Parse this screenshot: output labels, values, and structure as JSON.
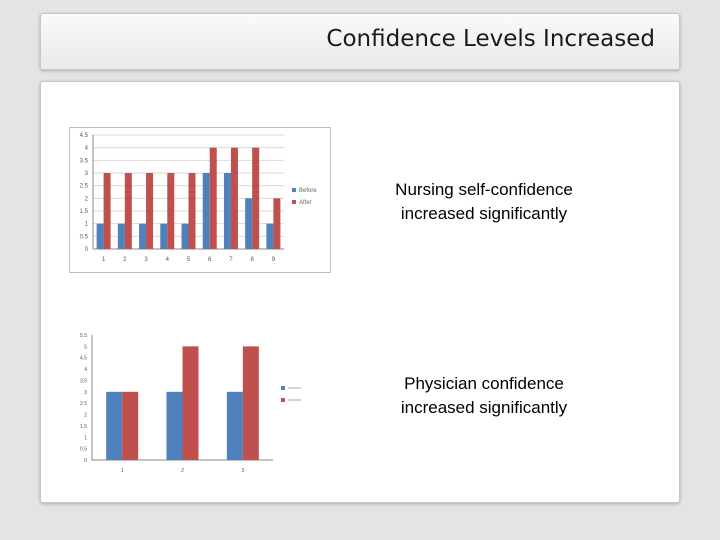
{
  "slide": {
    "title": "Confidence Levels Increased"
  },
  "captions": [
    {
      "line1": "Nursing self-confidence",
      "line2": "increased significantly"
    },
    {
      "line1": "Physician confidence",
      "line2": "increased significantly"
    }
  ],
  "colors": {
    "before": "#4f81bd",
    "after": "#c0504d",
    "axis": "#888888"
  },
  "chart_data": [
    {
      "type": "bar",
      "categories": [
        "1",
        "2",
        "3",
        "4",
        "5",
        "6",
        "7",
        "8",
        "9"
      ],
      "series": [
        {
          "name": "Before",
          "values": [
            1,
            1,
            1,
            1,
            1,
            3,
            3,
            2,
            1
          ]
        },
        {
          "name": "After",
          "values": [
            3,
            3,
            3,
            3,
            3,
            4,
            4,
            4,
            2
          ]
        }
      ],
      "ylim": [
        0,
        4.5
      ],
      "yticks": [
        "0",
        "0.5",
        "1",
        "1.5",
        "2",
        "2.5",
        "3",
        "3.5",
        "4",
        "4.5"
      ],
      "grid": true,
      "legend": "right"
    },
    {
      "type": "bar",
      "categories": [
        "1",
        "2",
        "3"
      ],
      "series": [
        {
          "values": [
            3,
            3,
            3
          ]
        },
        {
          "values": [
            3,
            5,
            5
          ]
        }
      ],
      "ylim": [
        0,
        5.5
      ],
      "yticks": [
        "0",
        "0.5",
        "1",
        "1.5",
        "2",
        "2.5",
        "3",
        "3.5",
        "4",
        "4.5",
        "5",
        "5.5"
      ],
      "grid": false,
      "legend": "right"
    }
  ]
}
